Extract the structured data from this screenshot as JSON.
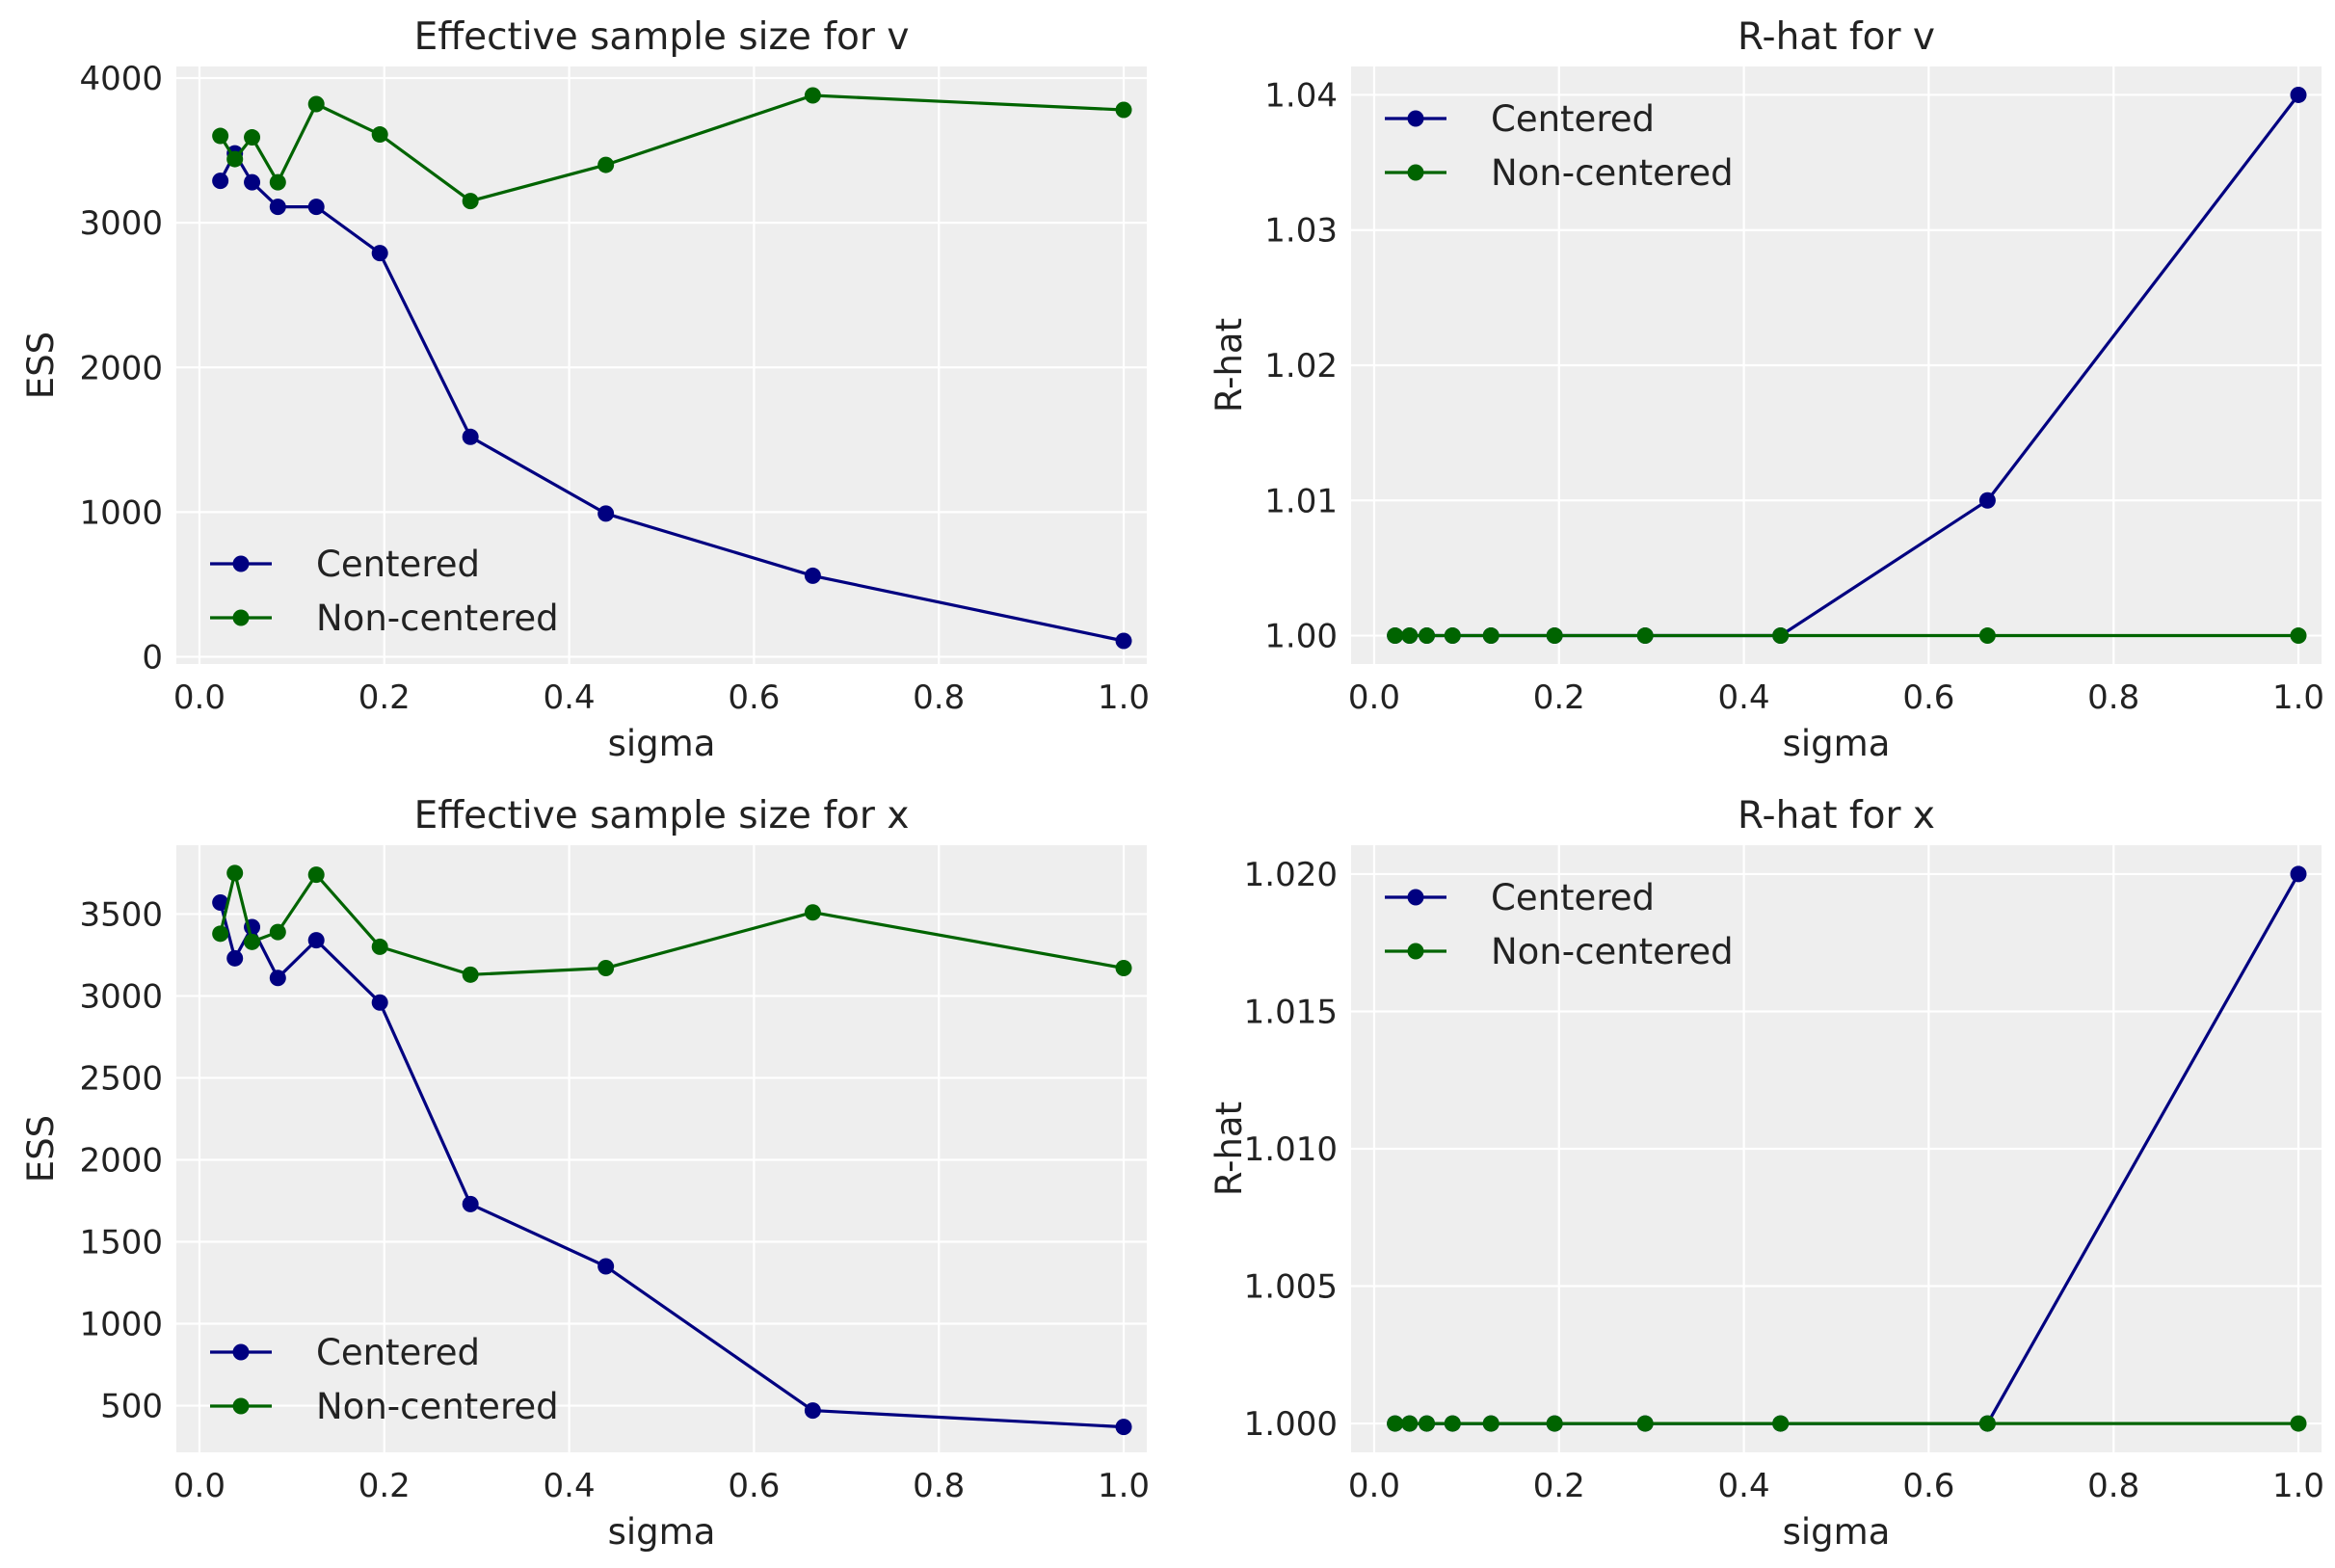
{
  "figure": {
    "colors": {
      "background": "#ffffff",
      "panel": "#eeeeee",
      "grid": "#ffffff",
      "centered": "#000080",
      "non_centered": "#006400"
    }
  },
  "chart_data": [
    {
      "type": "line",
      "title": "Effective sample size for v",
      "xlabel": "sigma",
      "ylabel": "ESS",
      "xlim": [
        -0.025,
        1.025
      ],
      "ylim": [
        -50,
        4080
      ],
      "xticks": [
        0.0,
        0.2,
        0.4,
        0.6,
        0.8,
        1.0
      ],
      "xtick_labels": [
        "0.0",
        "0.2",
        "0.4",
        "0.6",
        "0.8",
        "1.0"
      ],
      "yticks": [
        0,
        1000,
        2000,
        3000,
        4000
      ],
      "ytick_labels": [
        "0",
        "1000",
        "2000",
        "3000",
        "4000"
      ],
      "grid": true,
      "legend": "lower-left",
      "x": [
        0.0226,
        0.0383,
        0.0569,
        0.0848,
        0.1264,
        0.1952,
        0.2932,
        0.4397,
        0.6636,
        1.0
      ],
      "series": [
        {
          "name": "Centered",
          "color": "#000080",
          "marker": "circle",
          "values": [
            3290,
            3480,
            3280,
            3110,
            3110,
            2790,
            1520,
            990,
            560,
            110
          ]
        },
        {
          "name": "Non-centered",
          "color": "#006400",
          "marker": "circle",
          "values": [
            3600,
            3440,
            3590,
            3280,
            3820,
            3610,
            3150,
            3400,
            3880,
            3780
          ]
        }
      ]
    },
    {
      "type": "line",
      "title": "R-hat for v",
      "xlabel": "sigma",
      "ylabel": "R-hat",
      "xlim": [
        -0.025,
        1.025
      ],
      "ylim": [
        0.9979,
        1.0421
      ],
      "xticks": [
        0.0,
        0.2,
        0.4,
        0.6,
        0.8,
        1.0
      ],
      "xtick_labels": [
        "0.0",
        "0.2",
        "0.4",
        "0.6",
        "0.8",
        "1.0"
      ],
      "yticks": [
        1.0,
        1.01,
        1.02,
        1.03,
        1.04
      ],
      "ytick_labels": [
        "1.00",
        "1.01",
        "1.02",
        "1.03",
        "1.04"
      ],
      "grid": true,
      "legend": "upper-left",
      "x": [
        0.0226,
        0.0383,
        0.0569,
        0.0848,
        0.1264,
        0.1952,
        0.2932,
        0.4397,
        0.6636,
        1.0
      ],
      "series": [
        {
          "name": "Centered",
          "color": "#000080",
          "marker": "circle",
          "values": [
            1.0,
            1.0,
            1.0,
            1.0,
            1.0,
            1.0,
            1.0,
            1.0,
            1.01,
            1.04
          ]
        },
        {
          "name": "Non-centered",
          "color": "#006400",
          "marker": "circle",
          "values": [
            1.0,
            1.0,
            1.0,
            1.0,
            1.0,
            1.0,
            1.0,
            1.0,
            1.0,
            1.0
          ]
        }
      ]
    },
    {
      "type": "line",
      "title": "Effective sample size for x",
      "xlabel": "sigma",
      "ylabel": "ESS",
      "xlim": [
        -0.025,
        1.025
      ],
      "ylim": [
        215,
        3920
      ],
      "xticks": [
        0.0,
        0.2,
        0.4,
        0.6,
        0.8,
        1.0
      ],
      "xtick_labels": [
        "0.0",
        "0.2",
        "0.4",
        "0.6",
        "0.8",
        "1.0"
      ],
      "yticks": [
        500,
        1000,
        1500,
        2000,
        2500,
        3000,
        3500
      ],
      "ytick_labels": [
        "500",
        "1000",
        "1500",
        "2000",
        "2500",
        "3000",
        "3500"
      ],
      "grid": true,
      "legend": "lower-left",
      "x": [
        0.0226,
        0.0383,
        0.0569,
        0.0848,
        0.1264,
        0.1952,
        0.2932,
        0.4397,
        0.6636,
        1.0
      ],
      "series": [
        {
          "name": "Centered",
          "color": "#000080",
          "marker": "circle",
          "values": [
            3570,
            3230,
            3420,
            3110,
            3340,
            2960,
            1730,
            1350,
            470,
            370
          ]
        },
        {
          "name": "Non-centered",
          "color": "#006400",
          "marker": "circle",
          "values": [
            3380,
            3750,
            3330,
            3390,
            3740,
            3300,
            3130,
            3170,
            3510,
            3170
          ]
        }
      ]
    },
    {
      "type": "line",
      "title": "R-hat for x",
      "xlabel": "sigma",
      "ylabel": "R-hat",
      "xlim": [
        -0.025,
        1.025
      ],
      "ylim": [
        0.99895,
        1.02105
      ],
      "xticks": [
        0.0,
        0.2,
        0.4,
        0.6,
        0.8,
        1.0
      ],
      "xtick_labels": [
        "0.0",
        "0.2",
        "0.4",
        "0.6",
        "0.8",
        "1.0"
      ],
      "yticks": [
        1.0,
        1.005,
        1.01,
        1.015,
        1.02
      ],
      "ytick_labels": [
        "1.000",
        "1.005",
        "1.010",
        "1.015",
        "1.020"
      ],
      "grid": true,
      "legend": "upper-left",
      "x": [
        0.0226,
        0.0383,
        0.0569,
        0.0848,
        0.1264,
        0.1952,
        0.2932,
        0.4397,
        0.6636,
        1.0
      ],
      "series": [
        {
          "name": "Centered",
          "color": "#000080",
          "marker": "circle",
          "values": [
            1.0,
            1.0,
            1.0,
            1.0,
            1.0,
            1.0,
            1.0,
            1.0,
            1.0,
            1.02
          ]
        },
        {
          "name": "Non-centered",
          "color": "#006400",
          "marker": "circle",
          "values": [
            1.0,
            1.0,
            1.0,
            1.0,
            1.0,
            1.0,
            1.0,
            1.0,
            1.0,
            1.0
          ]
        }
      ]
    }
  ]
}
